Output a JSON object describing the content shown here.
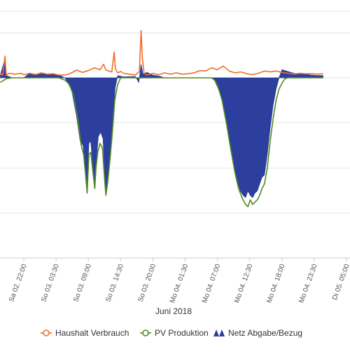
{
  "chart_data": {
    "type": "area",
    "title": "",
    "xlabel": "Juni 2018",
    "ylabel": "",
    "grid": true,
    "legend_position": "bottom-center",
    "x_tick_labels": [
      "Sa 02. 22:00",
      "So 03. 03:30",
      "So 03. 09:00",
      "So 03. 14:30",
      "So 03. 20:00",
      "Mo 04. 01:30",
      "Mo 04. 07:00",
      "Mo 04. 12:30",
      "Mo 04. 18:00",
      "Mo 04. 23:30",
      "Di 05. 05:00"
    ],
    "legend": [
      {
        "name": "Haushalt Verbrauch",
        "color": "#f26c2b",
        "marker": "circle"
      },
      {
        "name": "PV Produktion",
        "color": "#4f8a1e",
        "marker": "circle"
      },
      {
        "name": "Netz Abgabe/Bezug",
        "color": "#2c3e9e",
        "marker": "triangle"
      }
    ],
    "ylim": [
      -30,
      11
    ],
    "x_unit": "hours since Sa 02. 22:00",
    "series": [
      {
        "name": "Haushalt Verbrauch",
        "color": "#f26c2b",
        "points": [
          [
            -4,
            0.6
          ],
          [
            -3.8,
            0.9
          ],
          [
            -3.6,
            0.6
          ],
          [
            -3.2,
            4.8
          ],
          [
            -3.0,
            0.6
          ],
          [
            -2.5,
            1.0
          ],
          [
            -1.5,
            0.8
          ],
          [
            -0.5,
            1.0
          ],
          [
            0,
            0.7
          ],
          [
            1,
            1.0
          ],
          [
            2,
            0.7
          ],
          [
            3,
            1.1
          ],
          [
            4,
            0.8
          ],
          [
            5,
            0.9
          ],
          [
            6,
            0.6
          ],
          [
            7,
            0.6
          ],
          [
            8,
            1.0
          ],
          [
            9,
            1.7
          ],
          [
            10,
            1.2
          ],
          [
            11,
            1.6
          ],
          [
            12,
            2.2
          ],
          [
            13,
            1.8
          ],
          [
            13.6,
            3.0
          ],
          [
            14,
            1.7
          ],
          [
            15,
            1.3
          ],
          [
            15.4,
            5.7
          ],
          [
            15.6,
            2.0
          ],
          [
            16,
            1.1
          ],
          [
            16.5,
            1.4
          ],
          [
            17,
            1.0
          ],
          [
            18,
            0.8
          ],
          [
            19,
            0.6
          ],
          [
            19.7,
            1.4
          ],
          [
            20.0,
            10.5
          ],
          [
            20.2,
            4.5
          ],
          [
            20.5,
            1.0
          ],
          [
            21,
            0.6
          ],
          [
            22,
            1.0
          ],
          [
            23,
            0.7
          ],
          [
            24,
            1.1
          ],
          [
            25,
            0.8
          ],
          [
            26,
            1.1
          ],
          [
            27,
            0.8
          ],
          [
            28,
            0.9
          ],
          [
            29,
            1.1
          ],
          [
            30,
            1.6
          ],
          [
            31,
            1.5
          ],
          [
            32,
            2.2
          ],
          [
            33,
            1.8
          ],
          [
            34,
            2.6
          ],
          [
            35,
            1.5
          ],
          [
            36,
            1.1
          ],
          [
            37,
            1.3
          ],
          [
            38,
            0.9
          ],
          [
            39,
            0.7
          ],
          [
            40,
            1.0
          ],
          [
            41,
            1.5
          ],
          [
            42,
            1.3
          ],
          [
            43,
            1.5
          ],
          [
            44,
            1.2
          ],
          [
            45,
            1.0
          ],
          [
            46,
            0.8
          ],
          [
            47,
            1.0
          ],
          [
            48,
            0.9
          ],
          [
            49,
            0.9
          ],
          [
            50,
            0.8
          ],
          [
            51,
            0.9
          ]
        ]
      },
      {
        "name": "PV Produktion",
        "color": "#4f8a1e",
        "points": [
          [
            -4,
            -1.0
          ],
          [
            -3,
            -0.2
          ],
          [
            -2,
            0
          ],
          [
            0,
            0
          ],
          [
            6,
            0
          ],
          [
            7,
            -0.5
          ],
          [
            7.8,
            -1.5
          ],
          [
            8.5,
            -4.0
          ],
          [
            9.2,
            -9.0
          ],
          [
            9.8,
            -15.0
          ],
          [
            10.2,
            -17.0
          ],
          [
            10.5,
            -21.0
          ],
          [
            10.8,
            -25.5
          ],
          [
            11.1,
            -17.0
          ],
          [
            11.4,
            -16.5
          ],
          [
            11.8,
            -21.0
          ],
          [
            12.1,
            -24.5
          ],
          [
            12.3,
            -20.0
          ],
          [
            12.6,
            -16.5
          ],
          [
            13.0,
            -14.5
          ],
          [
            13.4,
            -15.5
          ],
          [
            13.8,
            -23.0
          ],
          [
            14.0,
            -26.0
          ],
          [
            14.3,
            -23.0
          ],
          [
            14.7,
            -18.0
          ],
          [
            15.1,
            -12.0
          ],
          [
            15.5,
            -5.0
          ],
          [
            16,
            -1.5
          ],
          [
            16.5,
            0
          ],
          [
            32,
            0
          ],
          [
            32.5,
            -0.5
          ],
          [
            33,
            -1.5
          ],
          [
            33.8,
            -5.0
          ],
          [
            34.6,
            -10.5
          ],
          [
            35.3,
            -16.0
          ],
          [
            36,
            -21.0
          ],
          [
            36.6,
            -24.5
          ],
          [
            37.2,
            -26.5
          ],
          [
            37.8,
            -28.0
          ],
          [
            38.2,
            -28.5
          ],
          [
            38.6,
            -27.0
          ],
          [
            39,
            -28.0
          ],
          [
            39.4,
            -27.5
          ],
          [
            39.8,
            -27.0
          ],
          [
            40.2,
            -26.0
          ],
          [
            40.6,
            -24.5
          ],
          [
            41.0,
            -23.5
          ],
          [
            41.5,
            -20.0
          ],
          [
            42,
            -14.0
          ],
          [
            42.5,
            -9.0
          ],
          [
            43,
            -5.0
          ],
          [
            43.5,
            -2.5
          ],
          [
            44,
            -1.2
          ],
          [
            44.5,
            -0.2
          ],
          [
            45,
            0
          ],
          [
            51,
            0
          ]
        ]
      },
      {
        "name": "Netz Abgabe/Bezug",
        "color": "#2c3e9e",
        "points": [
          [
            -4,
            0.6
          ],
          [
            -3.2,
            4.3
          ],
          [
            -3.0,
            0.5
          ],
          [
            -2,
            0
          ],
          [
            0,
            0
          ],
          [
            1,
            1.0
          ],
          [
            2,
            0.8
          ],
          [
            3,
            0.9
          ],
          [
            4,
            0.7
          ],
          [
            5,
            0.9
          ],
          [
            6,
            0.6
          ],
          [
            7,
            0
          ],
          [
            7.5,
            -1.0
          ],
          [
            8.2,
            -3.0
          ],
          [
            9,
            -8.5
          ],
          [
            9.6,
            -14.0
          ],
          [
            10.1,
            -15.0
          ],
          [
            10.4,
            -19.0
          ],
          [
            10.8,
            -24.0
          ],
          [
            11.1,
            -14.5
          ],
          [
            11.4,
            -14.0
          ],
          [
            11.8,
            -20.0
          ],
          [
            12.1,
            -23.5
          ],
          [
            12.4,
            -18.0
          ],
          [
            12.7,
            -13.0
          ],
          [
            13.1,
            -12.0
          ],
          [
            13.5,
            -13.5
          ],
          [
            13.8,
            -21.5
          ],
          [
            14.0,
            -25.0
          ],
          [
            14.4,
            -21.0
          ],
          [
            14.8,
            -15.0
          ],
          [
            15.2,
            -8.0
          ],
          [
            15.6,
            -2.0
          ],
          [
            16,
            0.5
          ],
          [
            17,
            0.2
          ],
          [
            19,
            0.3
          ],
          [
            19.6,
            -1.0
          ],
          [
            20.0,
            3.0
          ],
          [
            20.3,
            0.8
          ],
          [
            21,
            1.2
          ],
          [
            22,
            0.6
          ],
          [
            23,
            0.4
          ],
          [
            24,
            0
          ],
          [
            32,
            0
          ],
          [
            32.5,
            -0.5
          ],
          [
            33.5,
            -3.5
          ],
          [
            34.3,
            -8.0
          ],
          [
            35.0,
            -13.5
          ],
          [
            35.7,
            -18.5
          ],
          [
            36.3,
            -22.5
          ],
          [
            36.9,
            -25.0
          ],
          [
            37.4,
            -26.0
          ],
          [
            37.8,
            -26.5
          ],
          [
            38.2,
            -25.0
          ],
          [
            38.6,
            -26.0
          ],
          [
            39.0,
            -26.5
          ],
          [
            39.4,
            -25.5
          ],
          [
            39.8,
            -25.0
          ],
          [
            40.2,
            -23.5
          ],
          [
            40.6,
            -22.0
          ],
          [
            41.0,
            -21.5
          ],
          [
            41.5,
            -17.0
          ],
          [
            42,
            -11.0
          ],
          [
            42.5,
            -6.0
          ],
          [
            43,
            -2.5
          ],
          [
            43.5,
            0
          ],
          [
            44,
            1.8
          ],
          [
            45,
            1.4
          ],
          [
            46,
            1.0
          ],
          [
            47,
            0.8
          ],
          [
            48,
            0.8
          ],
          [
            49,
            0.6
          ],
          [
            50,
            0.5
          ],
          [
            51,
            0.5
          ]
        ]
      }
    ]
  }
}
